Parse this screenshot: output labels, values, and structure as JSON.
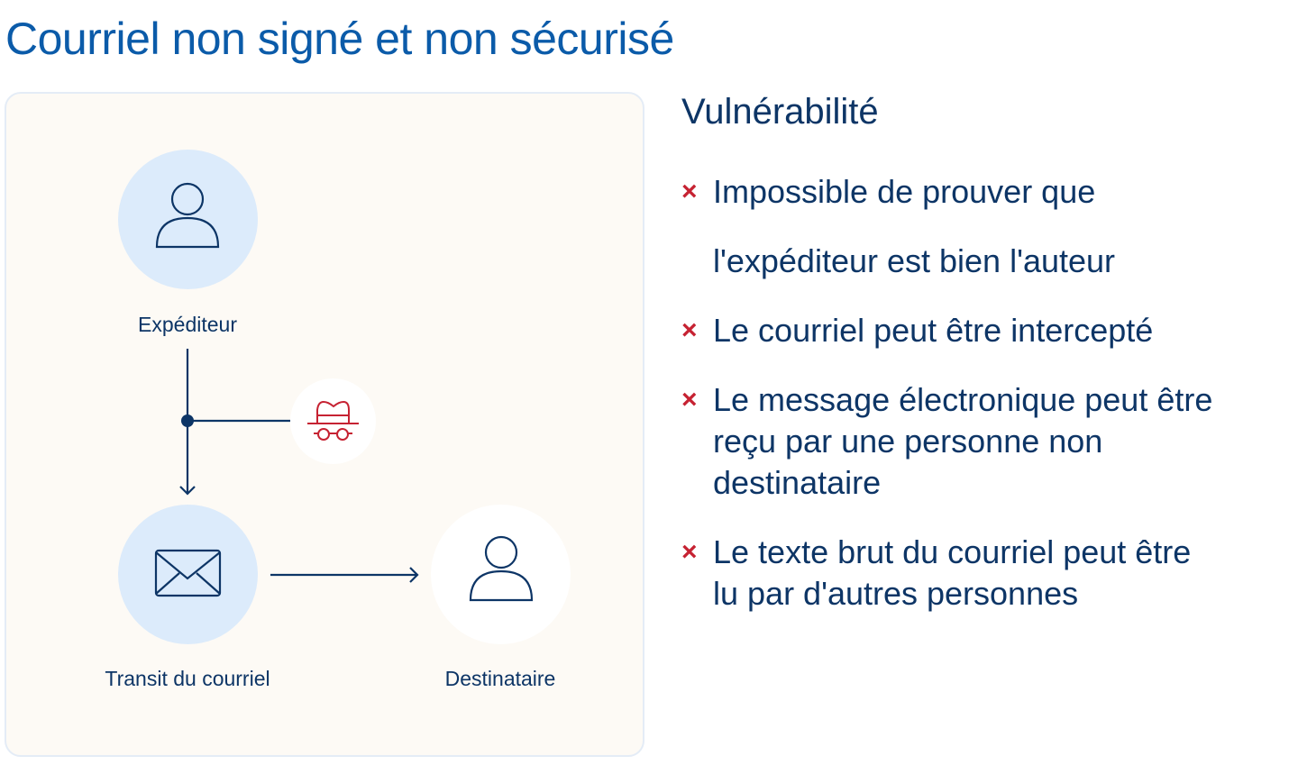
{
  "title": "Courriel non signé et non sécurisé",
  "diagram": {
    "sender": {
      "label": "Expéditeur",
      "icon": "person-icon"
    },
    "interceptor": {
      "icon": "spy-icon"
    },
    "transit": {
      "label": "Transit du courriel",
      "icon": "envelope-icon"
    },
    "recipient": {
      "label": "Destinataire",
      "icon": "person-icon"
    }
  },
  "vulnerabilities": {
    "heading": "Vulnérabilité",
    "items": [
      {
        "lines": [
          "Impossible de prouver que",
          "l'expéditeur est bien l'auteur"
        ]
      },
      {
        "lines": [
          "Le courriel peut être intercepté"
        ]
      },
      {
        "lines": [
          "Le message électronique peut être",
          "reçu par une personne non",
          "destinataire"
        ]
      },
      {
        "lines": [
          "Le texte brut du courriel peut être",
          "lu par d'autres personnes"
        ]
      }
    ],
    "marker": "×"
  },
  "colors": {
    "title": "#0b5ba9",
    "text": "#0d3566",
    "danger": "#c62232",
    "circle": "#dcebfb",
    "panel": "#fdfaf5"
  }
}
